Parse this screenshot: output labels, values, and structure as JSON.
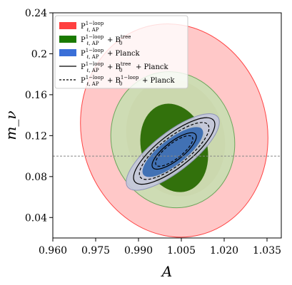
{
  "chart_data": {
    "type": "contour",
    "xlabel": "A",
    "ylabel": "m_ν",
    "xlim": [
      0.96,
      1.04
    ],
    "ylim": [
      0.02,
      0.24
    ],
    "x_ticks": [
      "0.960",
      "0.975",
      "0.990",
      "1.005",
      "1.020",
      "1.035"
    ],
    "y_ticks": [
      "0.04",
      "0.08",
      "0.12",
      "0.16",
      "0.2",
      "0.24"
    ],
    "fiducial_line": {
      "y": 0.1,
      "style": "dashed",
      "color": "#888888"
    },
    "legend_placement": "top-left",
    "colors": {
      "red": "#ff4040",
      "green": "#1a7a00",
      "blue": "#3a6fd8",
      "black": "#000000"
    },
    "series": [
      {
        "name": "P_{ℓ,AP}^{1-loop}",
        "legend_main": "P",
        "legend_sup": "1−loop",
        "legend_sub": "ℓ, AP",
        "legend_rest": "",
        "style": "filled",
        "color": "#ff4040",
        "contours": [
          {
            "level": "2σ",
            "cx": 1.0025,
            "cy": 0.125,
            "rx": 0.0325,
            "ry": 0.105,
            "tilt_deg": -14,
            "fill": "#ffb3b3",
            "opacity": 0.72,
            "stroke": "#ff4444"
          },
          {
            "level": "1σ",
            "cx": 1.003,
            "cy": 0.118,
            "rx": 0.017,
            "ry": 0.058,
            "tilt_deg": -16,
            "fill": "#e8ab9a",
            "opacity": 0.82,
            "stroke": "none"
          }
        ]
      },
      {
        "name": "P_{ℓ,AP}^{1-loop} + B_0^{tree}",
        "legend_main": "P",
        "legend_sup": "1−loop",
        "legend_sub": "ℓ, AP",
        "legend_rest": "+ B",
        "legend_b_sup": "tree",
        "legend_b_sub": "0",
        "style": "filled",
        "color": "#1a7a00",
        "contours": [
          {
            "level": "2σ",
            "cx": 1.002,
            "cy": 0.116,
            "rx": 0.0215,
            "ry": 0.067,
            "tilt_deg": -16,
            "fill": "#c5dfb0",
            "opacity": 0.85,
            "stroke": "#6aa55a"
          },
          {
            "level": "1σ",
            "cx": 1.0025,
            "cy": 0.108,
            "rx": 0.0115,
            "ry": 0.044,
            "tilt_deg": -16,
            "fill": "#2f6e08",
            "opacity": 0.98,
            "stroke": "none"
          }
        ]
      },
      {
        "name": "P_{ℓ,AP}^{1-loop} + Planck",
        "legend_main": "P",
        "legend_sup": "1−loop",
        "legend_sub": "ℓ, AP",
        "legend_rest": "+ Planck",
        "style": "filled",
        "color": "#3a6fd8",
        "contours": [
          {
            "level": "2σ",
            "cx": 1.002,
            "cy": 0.104,
            "rx": 0.02,
            "ry": 0.019,
            "tilt_deg": -38,
            "fill": "#c4c7dc",
            "opacity": 0.92,
            "stroke": "#8d94b8"
          },
          {
            "level": "1σ",
            "cx": 1.002,
            "cy": 0.104,
            "rx": 0.013,
            "ry": 0.0125,
            "tilt_deg": -38,
            "fill": "#3e6fb4",
            "opacity": 0.98,
            "stroke": "none"
          }
        ]
      },
      {
        "name": "P_{ℓ,AP}^{1-loop} + B_0^{tree} + Planck",
        "legend_main": "P",
        "legend_sup": "1−loop",
        "legend_sub": "ℓ, AP",
        "legend_rest": "+ B",
        "legend_b_sup": "tree",
        "legend_b_sub": "0",
        "legend_tail": "+ Planck",
        "style": "solid-line",
        "color": "#000000",
        "contours": [
          {
            "level": "2σ",
            "cx": 1.0025,
            "cy": 0.105,
            "rx": 0.0175,
            "ry": 0.016,
            "tilt_deg": -38
          },
          {
            "level": "1σ",
            "cx": 1.0025,
            "cy": 0.105,
            "rx": 0.0095,
            "ry": 0.009,
            "tilt_deg": -38
          }
        ]
      },
      {
        "name": "P_{ℓ,AP}^{1-loop} + B_0^{1-loop} + Planck",
        "legend_main": "P",
        "legend_sup": "1−loop",
        "legend_sub": "ℓ, AP",
        "legend_rest": "+ B",
        "legend_b_sup": "1−loop",
        "legend_b_sub": "0",
        "legend_tail": "+ Planck",
        "style": "dashed-line",
        "color": "#000000",
        "contours": [
          {
            "level": "2σ",
            "cx": 1.0025,
            "cy": 0.105,
            "rx": 0.015,
            "ry": 0.0135,
            "tilt_deg": -38
          },
          {
            "level": "1σ",
            "cx": 1.0025,
            "cy": 0.105,
            "rx": 0.008,
            "ry": 0.0075,
            "tilt_deg": -38
          }
        ]
      }
    ]
  }
}
